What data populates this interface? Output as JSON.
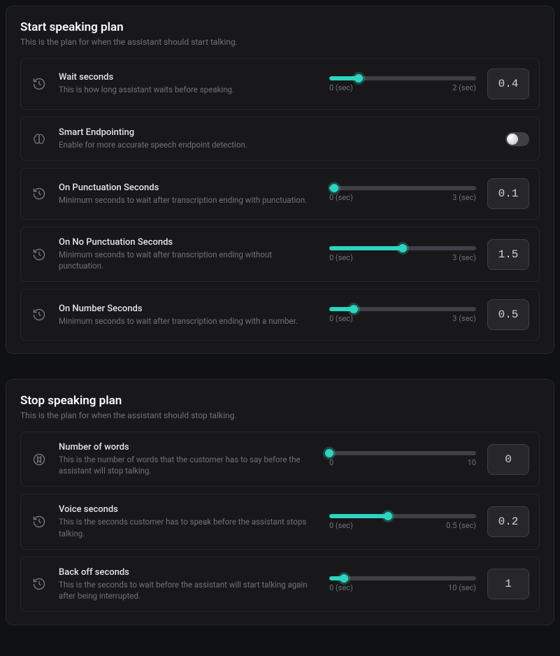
{
  "colors": {
    "accent": "#2dd4bf",
    "track": "#3f3f46",
    "panel_bg": "#18181b",
    "border": "#27272a",
    "text_muted": "#71717a"
  },
  "start": {
    "title": "Start speaking plan",
    "subtitle": "This is the plan for when the assistant should start talking.",
    "wait": {
      "label": "Wait seconds",
      "desc": "This is how long assistant waits before speaking.",
      "min_label": "0 (sec)",
      "max_label": "2 (sec)",
      "min": 0,
      "max": 2,
      "value": 0.4,
      "value_display": "0.4"
    },
    "smart": {
      "label": "Smart Endpointing",
      "desc": "Enable for more accurate speech endpoint detection.",
      "enabled": false
    },
    "punct": {
      "label": "On Punctuation Seconds",
      "desc": "Minimum seconds to wait after transcription ending with punctuation.",
      "min_label": "0 (sec)",
      "max_label": "3 (sec)",
      "min": 0,
      "max": 3,
      "value": 0.1,
      "value_display": "0.1"
    },
    "nopunct": {
      "label": "On No Punctuation Seconds",
      "desc": "Minimum seconds to wait after transcription ending without punctuation.",
      "min_label": "0 (sec)",
      "max_label": "3 (sec)",
      "min": 0,
      "max": 3,
      "value": 1.5,
      "value_display": "1.5"
    },
    "number": {
      "label": "On Number Seconds",
      "desc": "Minimum seconds to wait after transcription ending with a number.",
      "min_label": "0 (sec)",
      "max_label": "3 (sec)",
      "min": 0,
      "max": 3,
      "value": 0.5,
      "value_display": "0.5"
    }
  },
  "stop": {
    "title": "Stop speaking plan",
    "subtitle": "This is the plan for when the assistant should stop talking.",
    "words": {
      "label": "Number of words",
      "desc": "This is the number of words that the customer has to say before the assistant will stop talking.",
      "min_label": "0",
      "max_label": "10",
      "min": 0,
      "max": 10,
      "value": 0,
      "value_display": "0"
    },
    "voice": {
      "label": "Voice seconds",
      "desc": "This is the seconds customer has to speak before the assistant stops talking.",
      "min_label": "0 (sec)",
      "max_label": "0.5 (sec)",
      "min": 0,
      "max": 0.5,
      "value": 0.2,
      "value_display": "0.2"
    },
    "backoff": {
      "label": "Back off seconds",
      "desc": "This is the seconds to wait before the assistant will start talking again after being interrupted.",
      "min_label": "0 (sec)",
      "max_label": "10 (sec)",
      "min": 0,
      "max": 10,
      "value": 1,
      "value_display": "1"
    }
  }
}
